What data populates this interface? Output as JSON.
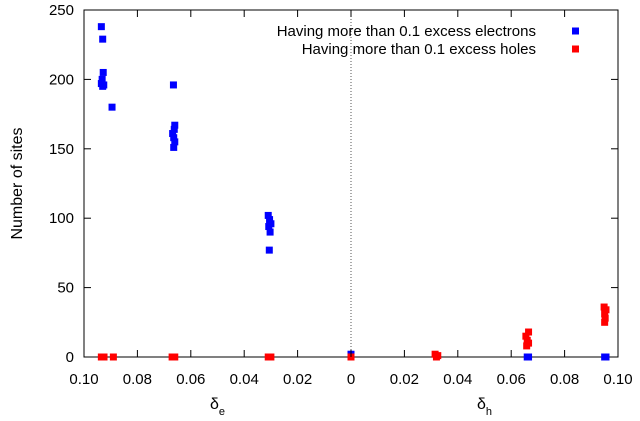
{
  "colors": {
    "electrons": "#0000ff",
    "holes": "#ff0000",
    "axis": "#000000",
    "zero_line": "#555555"
  },
  "chart_data": {
    "type": "scatter",
    "title": "",
    "ylabel": "Number of sites",
    "xlabel_left": {
      "symbol": "δ",
      "subscript": "e"
    },
    "xlabel_right": {
      "symbol": "δ",
      "subscript": "h"
    },
    "x_axis_note": "Mirrored axis: values of δe on the left of 0, values of δh on the right of 0",
    "xlim": [
      -0.1,
      0.1
    ],
    "ylim": [
      0,
      250
    ],
    "x_ticks": [
      -0.1,
      -0.08,
      -0.06,
      -0.04,
      -0.02,
      0,
      0.02,
      0.04,
      0.06,
      0.08,
      0.1
    ],
    "x_tick_labels": [
      "0.10",
      "0.08",
      "0.06",
      "0.04",
      "0.02",
      "0",
      "0.02",
      "0.04",
      "0.06",
      "0.08",
      "0.10"
    ],
    "y_ticks": [
      0,
      50,
      100,
      150,
      200,
      250
    ],
    "y_tick_labels": [
      "0",
      "50",
      "100",
      "150",
      "200",
      "250"
    ],
    "grid": false,
    "zero_line": "dotted vertical line at x = 0",
    "legend_position": "top-right",
    "series": [
      {
        "name": "Having more than 0.1 excess electrons",
        "color": "#0000ff",
        "marker": "square",
        "points": [
          [
            -0.0935,
            238
          ],
          [
            -0.093,
            229
          ],
          [
            -0.0928,
            205
          ],
          [
            -0.0932,
            200
          ],
          [
            -0.0935,
            197
          ],
          [
            -0.093,
            195
          ],
          [
            -0.0926,
            196
          ],
          [
            -0.0895,
            180
          ],
          [
            -0.0665,
            196
          ],
          [
            -0.066,
            167
          ],
          [
            -0.0662,
            164
          ],
          [
            -0.0668,
            161
          ],
          [
            -0.0664,
            158
          ],
          [
            -0.066,
            155
          ],
          [
            -0.0664,
            151
          ],
          [
            -0.031,
            102
          ],
          [
            -0.0305,
            99
          ],
          [
            -0.03,
            96
          ],
          [
            -0.0308,
            94
          ],
          [
            -0.0303,
            90
          ],
          [
            -0.0306,
            77
          ],
          [
            0.0,
            2
          ],
          [
            0.066,
            0
          ],
          [
            0.0665,
            0
          ],
          [
            0.095,
            0
          ],
          [
            0.0955,
            0
          ]
        ]
      },
      {
        "name": "Having more than 0.1 excess holes",
        "color": "#ff0000",
        "marker": "square",
        "points": [
          [
            -0.0935,
            0
          ],
          [
            -0.0925,
            0
          ],
          [
            -0.089,
            0
          ],
          [
            -0.067,
            0
          ],
          [
            -0.066,
            0
          ],
          [
            -0.031,
            0
          ],
          [
            -0.03,
            0
          ],
          [
            0.0,
            0
          ],
          [
            0.0315,
            2
          ],
          [
            0.032,
            0
          ],
          [
            0.0325,
            1
          ],
          [
            0.0655,
            15
          ],
          [
            0.0665,
            18
          ],
          [
            0.066,
            12
          ],
          [
            0.0665,
            10
          ],
          [
            0.0658,
            8
          ],
          [
            0.0948,
            36
          ],
          [
            0.0955,
            34
          ],
          [
            0.095,
            31
          ],
          [
            0.0952,
            28
          ],
          [
            0.095,
            25
          ]
        ]
      }
    ]
  }
}
